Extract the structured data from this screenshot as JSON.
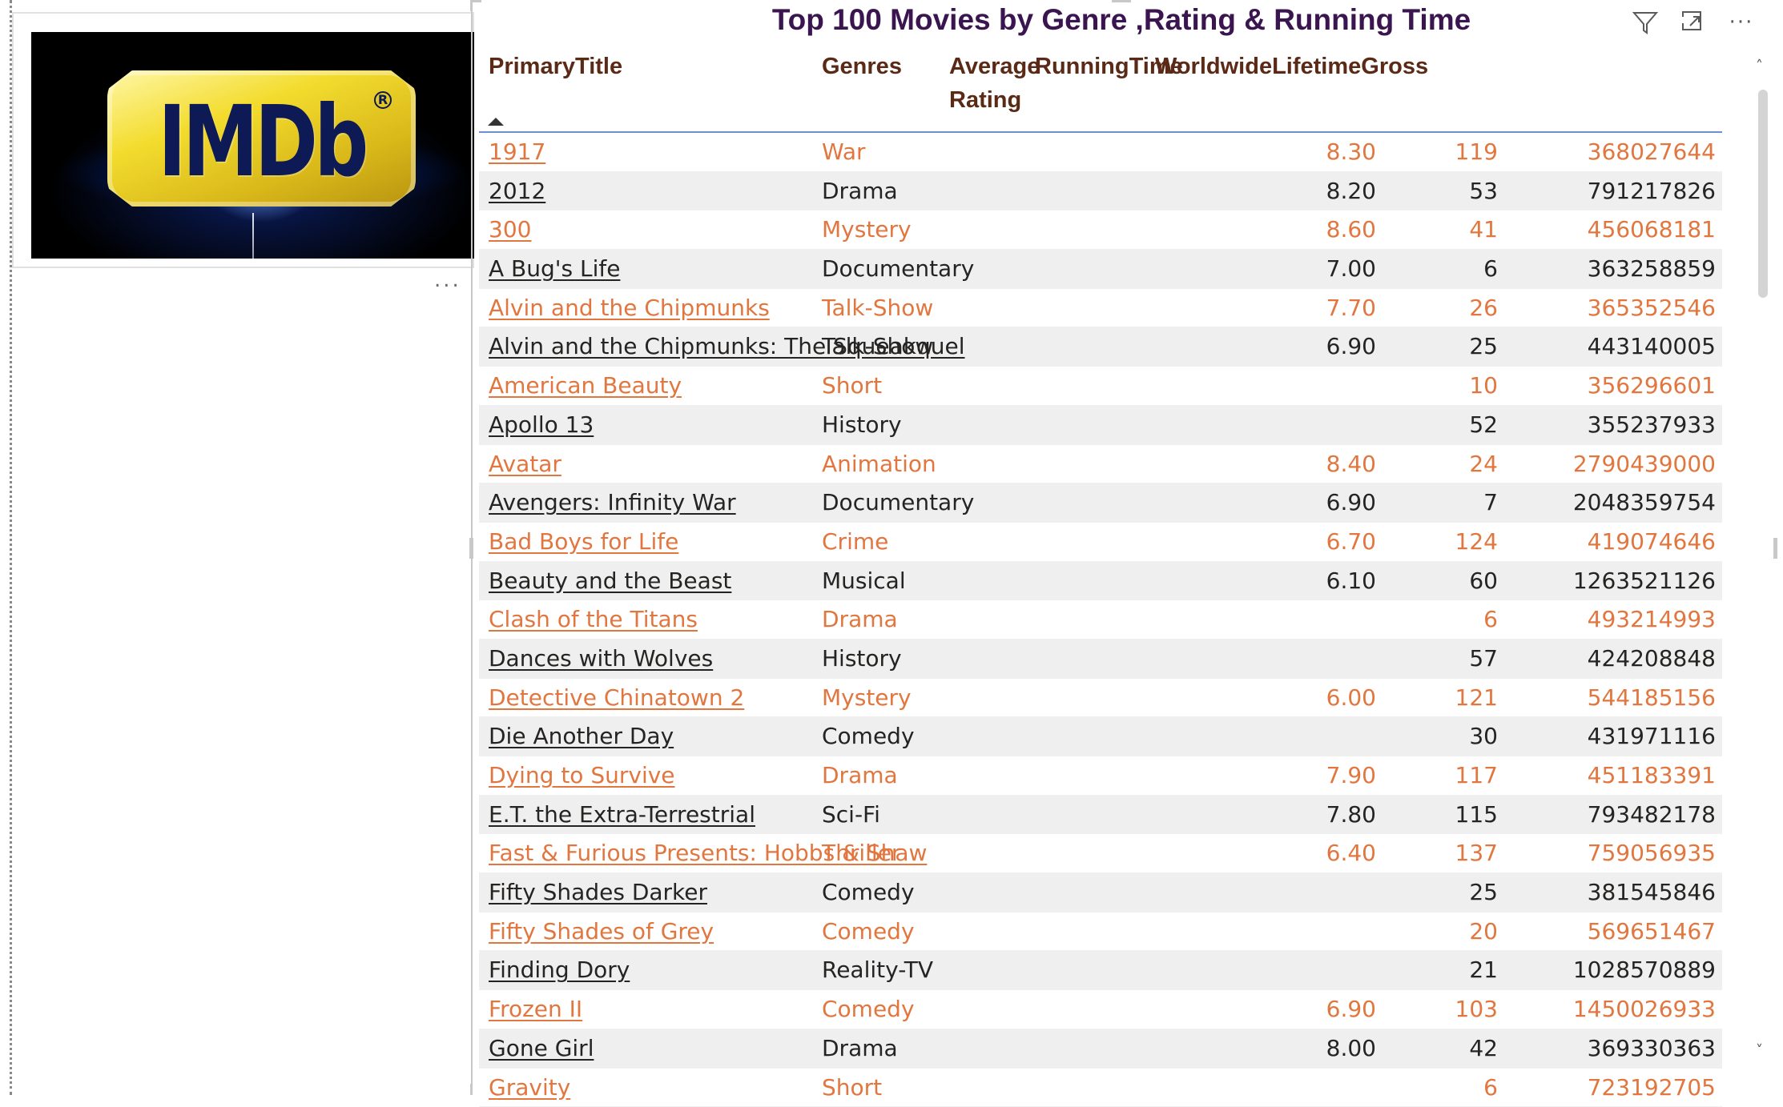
{
  "logo": {
    "text": "IMDb",
    "reg_mark": "R",
    "more_label": "..."
  },
  "visual": {
    "title": "Top 100 Movies by Genre ,Rating & Running Time",
    "icons": [
      "filter-icon",
      "focus-mode-icon",
      "more-options-icon"
    ],
    "more_label": "···",
    "columns": {
      "title": "PrimaryTitle",
      "genres": "Genres",
      "rating_line1": "Average",
      "rating_line2": "Rating",
      "running": "RunningTime",
      "gross": "WorldwideLifetimeGross"
    },
    "sort": {
      "column": "PrimaryTitle",
      "direction": "ascending"
    },
    "colors": {
      "accent_row": "#e2763f",
      "plain_row": "#252423",
      "title": "#3a1550",
      "header": "#5a2a16"
    },
    "rows": [
      {
        "title": "1917",
        "genre": "War",
        "rating": "8.30",
        "running": "119",
        "gross": "368027644"
      },
      {
        "title": "2012",
        "genre": "Drama",
        "rating": "8.20",
        "running": "53",
        "gross": "791217826"
      },
      {
        "title": "300",
        "genre": "Mystery",
        "rating": "8.60",
        "running": "41",
        "gross": "456068181"
      },
      {
        "title": "A Bug's Life",
        "genre": "Documentary",
        "rating": "7.00",
        "running": "6",
        "gross": "363258859"
      },
      {
        "title": "Alvin and the Chipmunks",
        "genre": "Talk-Show",
        "rating": "7.70",
        "running": "26",
        "gross": "365352546"
      },
      {
        "title": "Alvin and the Chipmunks: The Squeakquel",
        "genre": "Talk-Show",
        "rating": "6.90",
        "running": "25",
        "gross": "443140005"
      },
      {
        "title": "American Beauty",
        "genre": "Short",
        "rating": "",
        "running": "10",
        "gross": "356296601"
      },
      {
        "title": "Apollo 13",
        "genre": "History",
        "rating": "",
        "running": "52",
        "gross": "355237933"
      },
      {
        "title": "Avatar",
        "genre": "Animation",
        "rating": "8.40",
        "running": "24",
        "gross": "2790439000"
      },
      {
        "title": "Avengers: Infinity War",
        "genre": "Documentary",
        "rating": "6.90",
        "running": "7",
        "gross": "2048359754"
      },
      {
        "title": "Bad Boys for Life",
        "genre": "Crime",
        "rating": "6.70",
        "running": "124",
        "gross": "419074646"
      },
      {
        "title": "Beauty and the Beast",
        "genre": "Musical",
        "rating": "6.10",
        "running": "60",
        "gross": "1263521126"
      },
      {
        "title": "Clash of the Titans",
        "genre": "Drama",
        "rating": "",
        "running": "6",
        "gross": "493214993"
      },
      {
        "title": "Dances with Wolves",
        "genre": "History",
        "rating": "",
        "running": "57",
        "gross": "424208848"
      },
      {
        "title": "Detective Chinatown 2",
        "genre": "Mystery",
        "rating": "6.00",
        "running": "121",
        "gross": "544185156"
      },
      {
        "title": "Die Another Day",
        "genre": "Comedy",
        "rating": "",
        "running": "30",
        "gross": "431971116"
      },
      {
        "title": "Dying to Survive",
        "genre": "Drama",
        "rating": "7.90",
        "running": "117",
        "gross": "451183391"
      },
      {
        "title": "E.T. the Extra-Terrestrial",
        "genre": "Sci-Fi",
        "rating": "7.80",
        "running": "115",
        "gross": "793482178"
      },
      {
        "title": "Fast & Furious Presents: Hobbs & Shaw",
        "genre": "Thriller",
        "rating": "6.40",
        "running": "137",
        "gross": "759056935"
      },
      {
        "title": "Fifty Shades Darker",
        "genre": "Comedy",
        "rating": "",
        "running": "25",
        "gross": "381545846"
      },
      {
        "title": "Fifty Shades of Grey",
        "genre": "Comedy",
        "rating": "",
        "running": "20",
        "gross": "569651467"
      },
      {
        "title": "Finding Dory",
        "genre": "Reality-TV",
        "rating": "",
        "running": "21",
        "gross": "1028570889"
      },
      {
        "title": "Frozen II",
        "genre": "Comedy",
        "rating": "6.90",
        "running": "103",
        "gross": "1450026933"
      },
      {
        "title": "Gone Girl",
        "genre": "Drama",
        "rating": "8.00",
        "running": "42",
        "gross": "369330363"
      },
      {
        "title": "Gravity",
        "genre": "Short",
        "rating": "",
        "running": "6",
        "gross": "723192705"
      }
    ]
  }
}
